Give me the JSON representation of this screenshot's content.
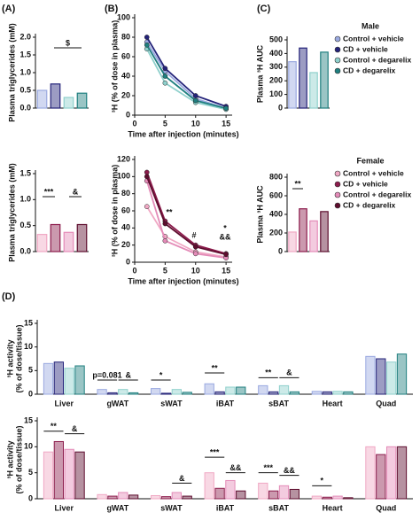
{
  "chart_data": [
    {
      "type": "bar",
      "panel": "(A)",
      "y_label": "Plasma triglycerides (mM)",
      "ylim": [
        0,
        2
      ],
      "yticks": [
        {
          "value": 0,
          "label": "0.0"
        },
        {
          "value": 0.5,
          "label": "0.5"
        },
        {
          "value": 1,
          "label": "1.0"
        },
        {
          "value": 1.5,
          "label": "1.5"
        },
        {
          "value": 2,
          "label": "2.0"
        }
      ],
      "series": [
        {
          "color": "#9aa9e0",
          "values": [
            0.5
          ]
        },
        {
          "color": "#24237a",
          "values": [
            0.68
          ]
        },
        {
          "color": "#8fd0cc",
          "values": [
            0.3
          ]
        },
        {
          "color": "#1f7f7f",
          "values": [
            0.42
          ]
        }
      ],
      "annotations": [
        "$"
      ]
    },
    {
      "type": "bar",
      "y_label": "Plasma triglycerides (mM)",
      "ylim": [
        0,
        1.5
      ],
      "yticks": [
        {
          "value": 0,
          "label": "0.0"
        },
        {
          "value": 0.5,
          "label": "0.5"
        },
        {
          "value": 1,
          "label": "1.0"
        },
        {
          "value": 1.5,
          "label": "1.5"
        }
      ],
      "series": [
        {
          "color": "#f0a8c4",
          "values": [
            0.33
          ]
        },
        {
          "color": "#8c1c4c",
          "values": [
            0.52
          ]
        },
        {
          "color": "#e48bb8",
          "values": [
            0.37
          ]
        },
        {
          "color": "#5e0d2e",
          "values": [
            0.52
          ]
        }
      ],
      "annotations": [
        "***",
        "&"
      ]
    },
    {
      "type": "line",
      "panel": "(B)",
      "y_label": "³H (% of dose in plasma)",
      "x_label": "Time after injection (minutes)",
      "x": [
        2,
        5,
        10,
        15
      ],
      "xlim": [
        0,
        16
      ],
      "xticks": [
        0,
        5,
        10,
        15
      ],
      "ylim": [
        0,
        100
      ],
      "yticks": [
        0,
        20,
        40,
        60,
        80,
        100
      ],
      "series": [
        {
          "color": "#9aa9e0",
          "values": [
            75,
            45,
            17,
            7
          ]
        },
        {
          "color": "#24237a",
          "values": [
            80,
            48,
            20,
            9
          ]
        },
        {
          "color": "#8fd0cc",
          "values": [
            68,
            33,
            13,
            6
          ]
        },
        {
          "color": "#1f7f7f",
          "values": [
            72,
            40,
            15,
            7
          ]
        }
      ]
    },
    {
      "type": "line",
      "y_label": "³H (% of dose in plasma)",
      "x_label": "Time after injection (minutes)",
      "x": [
        2,
        5,
        10,
        15
      ],
      "xlim": [
        0,
        16
      ],
      "xticks": [
        0,
        5,
        10,
        15
      ],
      "ylim": [
        0,
        120
      ],
      "yticks": [
        0,
        20,
        40,
        60,
        80,
        100,
        120
      ],
      "series": [
        {
          "color": "#f0a8c4",
          "values": [
            65,
            30,
            12,
            6
          ]
        },
        {
          "color": "#8c1c4c",
          "values": [
            105,
            48,
            20,
            10
          ]
        },
        {
          "color": "#e48bb8",
          "values": [
            95,
            25,
            10,
            5
          ]
        },
        {
          "color": "#5e0d2e",
          "values": [
            100,
            45,
            18,
            9
          ]
        }
      ],
      "annotations": [
        "**",
        "#",
        "*",
        "&&"
      ]
    },
    {
      "type": "bar",
      "panel": "(C)",
      "y_label": "Plasma ³H AUC",
      "legend_title": "Male",
      "ylim": [
        0,
        500
      ],
      "yticks": [
        0,
        100,
        200,
        300,
        400,
        500
      ],
      "series": [
        {
          "name": "Control + vehicle",
          "color": "#9aa9e0",
          "values": [
            340
          ]
        },
        {
          "name": "CD + vehicle",
          "color": "#24237a",
          "values": [
            440
          ]
        },
        {
          "name": "Control + degarelix",
          "color": "#8fd0cc",
          "values": [
            260
          ]
        },
        {
          "name": "CD + degarelix",
          "color": "#1f7f7f",
          "values": [
            410
          ]
        }
      ]
    },
    {
      "type": "bar",
      "y_label": "Plasma ³H AUC",
      "legend_title": "Female",
      "ylim": [
        0,
        800
      ],
      "yticks": [
        0,
        200,
        400,
        600,
        800
      ],
      "series": [
        {
          "name": "Control + vehicle",
          "color": "#f0a8c4",
          "values": [
            210
          ]
        },
        {
          "name": "CD + vehicle",
          "color": "#8c1c4c",
          "values": [
            460
          ]
        },
        {
          "name": "Control + degarelix",
          "color": "#e48bb8",
          "values": [
            330
          ]
        },
        {
          "name": "CD + degarelix",
          "color": "#5e0d2e",
          "values": [
            430
          ]
        }
      ],
      "annotations": [
        "**"
      ]
    },
    {
      "type": "grouped_bar",
      "panel": "(D)",
      "y_label": [
        "³H activity",
        "(% of dose/tissue)"
      ],
      "categories": [
        "Liver",
        "gWAT",
        "sWAT",
        "iBAT",
        "sBAT",
        "Heart",
        "Quad"
      ],
      "ylim": [
        0,
        15
      ],
      "yticks": [
        0,
        5,
        10,
        15
      ],
      "series": [
        {
          "color": "#9aa9e0",
          "values": [
            6.5,
            1.0,
            1.2,
            2.2,
            1.8,
            0.6,
            8.0
          ]
        },
        {
          "color": "#24237a",
          "values": [
            6.8,
            0.3,
            0.2,
            0.5,
            0.5,
            0.5,
            7.5
          ]
        },
        {
          "color": "#8fd0cc",
          "values": [
            5.5,
            1.0,
            1.0,
            1.5,
            1.8,
            0.6,
            6.8
          ]
        },
        {
          "color": "#1f7f7f",
          "values": [
            6.0,
            0.3,
            0.4,
            1.5,
            0.5,
            0.5,
            8.5
          ]
        }
      ],
      "annotations": [
        "p=0.081",
        "&",
        "*",
        "**",
        "**",
        "&"
      ]
    },
    {
      "type": "grouped_bar",
      "y_label": [
        "³H activity",
        "(% of dose/tissue)"
      ],
      "categories": [
        "Liver",
        "gWAT",
        "sWAT",
        "iBAT",
        "sBAT",
        "Heart",
        "Quad"
      ],
      "ylim": [
        0,
        15
      ],
      "yticks": [
        0,
        5,
        10,
        15
      ],
      "series": [
        {
          "color": "#f0a8c4",
          "values": [
            9.0,
            0.8,
            0.6,
            5.0,
            3.0,
            0.5,
            10.0
          ]
        },
        {
          "color": "#8c1c4c",
          "values": [
            11.0,
            0.5,
            0.4,
            2.0,
            1.5,
            0.3,
            8.5
          ]
        },
        {
          "color": "#e48bb8",
          "values": [
            9.5,
            1.2,
            1.2,
            3.5,
            2.5,
            0.5,
            10.0
          ]
        },
        {
          "color": "#5e0d2e",
          "values": [
            9.0,
            0.7,
            0.5,
            1.5,
            1.8,
            0.2,
            10.0
          ]
        }
      ],
      "annotations": [
        "**",
        "&",
        "&",
        "***",
        "&&",
        "***",
        "&&",
        "*"
      ]
    }
  ]
}
